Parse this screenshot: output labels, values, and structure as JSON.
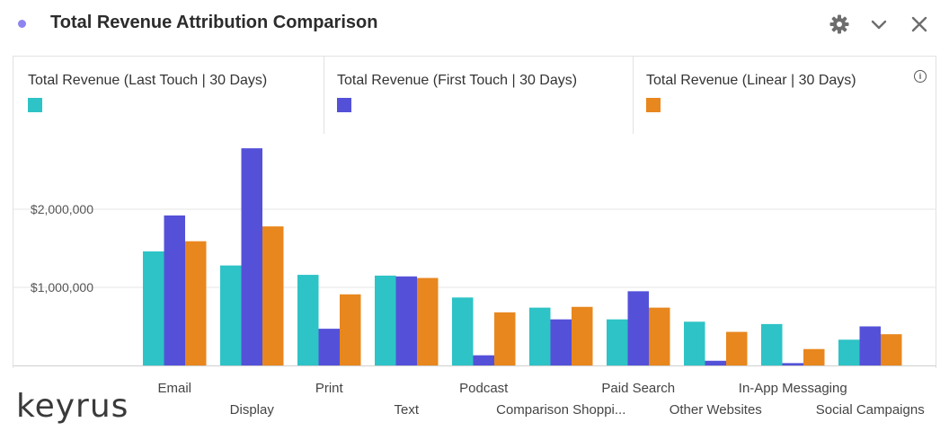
{
  "header": {
    "title": "Total Revenue Attribution Comparison",
    "dot_color": "#8e84f0",
    "icons": [
      "gear-icon",
      "chevron-down-icon",
      "close-icon"
    ]
  },
  "legend": {
    "items": [
      {
        "label": "Total Revenue (Last Touch | 30 Days)",
        "color": "#2ec3c6"
      },
      {
        "label": "Total Revenue (First Touch | 30 Days)",
        "color": "#5451d8"
      },
      {
        "label": "Total Revenue (Linear | 30 Days)",
        "color": "#e8871e"
      }
    ],
    "info_glyph": "i"
  },
  "logo": {
    "text": "keyrus"
  },
  "chart_data": {
    "type": "bar",
    "title": "Total Revenue Attribution Comparison",
    "categories": [
      "Email",
      "Display",
      "Print",
      "Text",
      "Podcast",
      "Comparison Shoppi...",
      "Paid Search",
      "Other Websites",
      "In-App Messaging",
      "Social Campaigns"
    ],
    "series": [
      {
        "name": "Total Revenue (Last Touch | 30 Days)",
        "color": "#2ec3c6",
        "values": [
          1460000,
          1280000,
          1160000,
          1150000,
          870000,
          740000,
          590000,
          560000,
          530000,
          330000
        ]
      },
      {
        "name": "Total Revenue (First Touch | 30 Days)",
        "color": "#5451d8",
        "values": [
          1920000,
          2780000,
          470000,
          1140000,
          130000,
          590000,
          950000,
          60000,
          30000,
          500000
        ]
      },
      {
        "name": "Total Revenue (Linear | 30 Days)",
        "color": "#e8871e",
        "values": [
          1590000,
          1780000,
          910000,
          1120000,
          680000,
          750000,
          740000,
          430000,
          210000,
          400000
        ]
      }
    ],
    "yticks": [
      1000000,
      2000000
    ],
    "ytick_labels": [
      "$1,000,000",
      "$2,000,000"
    ],
    "ylim": [
      0,
      3000000
    ],
    "grid": true,
    "legend_position": "top"
  }
}
